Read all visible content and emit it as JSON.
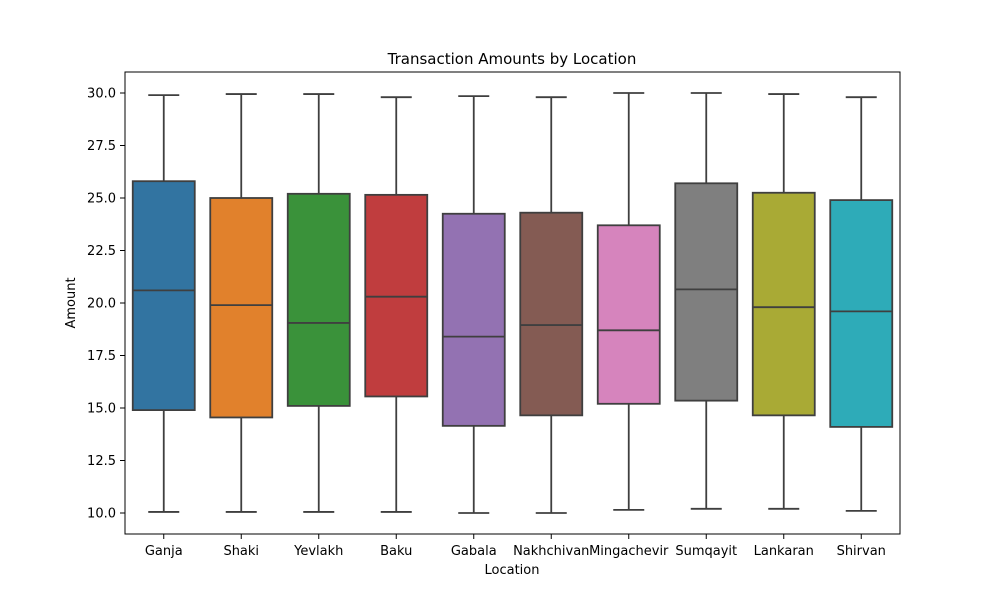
{
  "chart_data": {
    "type": "box",
    "title": "Transaction Amounts by Location",
    "xlabel": "Location",
    "ylabel": "Amount",
    "ylim": [
      9.0,
      31.0
    ],
    "yticks": [
      "10.0",
      "12.5",
      "15.0",
      "17.5",
      "20.0",
      "22.5",
      "25.0",
      "27.5",
      "30.0"
    ],
    "grid": false,
    "categories": [
      "Ganja",
      "Shaki",
      "Yevlakh",
      "Baku",
      "Gabala",
      "Nakhchivan",
      "Mingachevir",
      "Sumqayit",
      "Lankaran",
      "Shirvan"
    ],
    "boxes": [
      {
        "category": "Ganja",
        "min": 10.05,
        "q1": 14.9,
        "median": 20.6,
        "q3": 25.8,
        "max": 29.9,
        "color": "#3274a1"
      },
      {
        "category": "Shaki",
        "min": 10.05,
        "q1": 14.55,
        "median": 19.9,
        "q3": 25.0,
        "max": 29.95,
        "color": "#e1812c"
      },
      {
        "category": "Yevlakh",
        "min": 10.05,
        "q1": 15.1,
        "median": 19.05,
        "q3": 25.2,
        "max": 29.95,
        "color": "#3a923a"
      },
      {
        "category": "Baku",
        "min": 10.05,
        "q1": 15.55,
        "median": 20.3,
        "q3": 25.15,
        "max": 29.8,
        "color": "#c03d3e"
      },
      {
        "category": "Gabala",
        "min": 10.0,
        "q1": 14.15,
        "median": 18.4,
        "q3": 24.25,
        "max": 29.85,
        "color": "#9372b2"
      },
      {
        "category": "Nakhchivan",
        "min": 10.0,
        "q1": 14.65,
        "median": 18.95,
        "q3": 24.3,
        "max": 29.8,
        "color": "#845b53"
      },
      {
        "category": "Mingachevir",
        "min": 10.15,
        "q1": 15.2,
        "median": 18.7,
        "q3": 23.7,
        "max": 30.0,
        "color": "#d684bd"
      },
      {
        "category": "Sumqayit",
        "min": 10.2,
        "q1": 15.35,
        "median": 20.65,
        "q3": 25.7,
        "max": 30.0,
        "color": "#7f7f7f"
      },
      {
        "category": "Lankaran",
        "min": 10.2,
        "q1": 14.65,
        "median": 19.8,
        "q3": 25.25,
        "max": 29.95,
        "color": "#a9aa35"
      },
      {
        "category": "Shirvan",
        "min": 10.1,
        "q1": 14.1,
        "median": 19.6,
        "q3": 24.9,
        "max": 29.8,
        "color": "#2eabb8"
      }
    ]
  }
}
